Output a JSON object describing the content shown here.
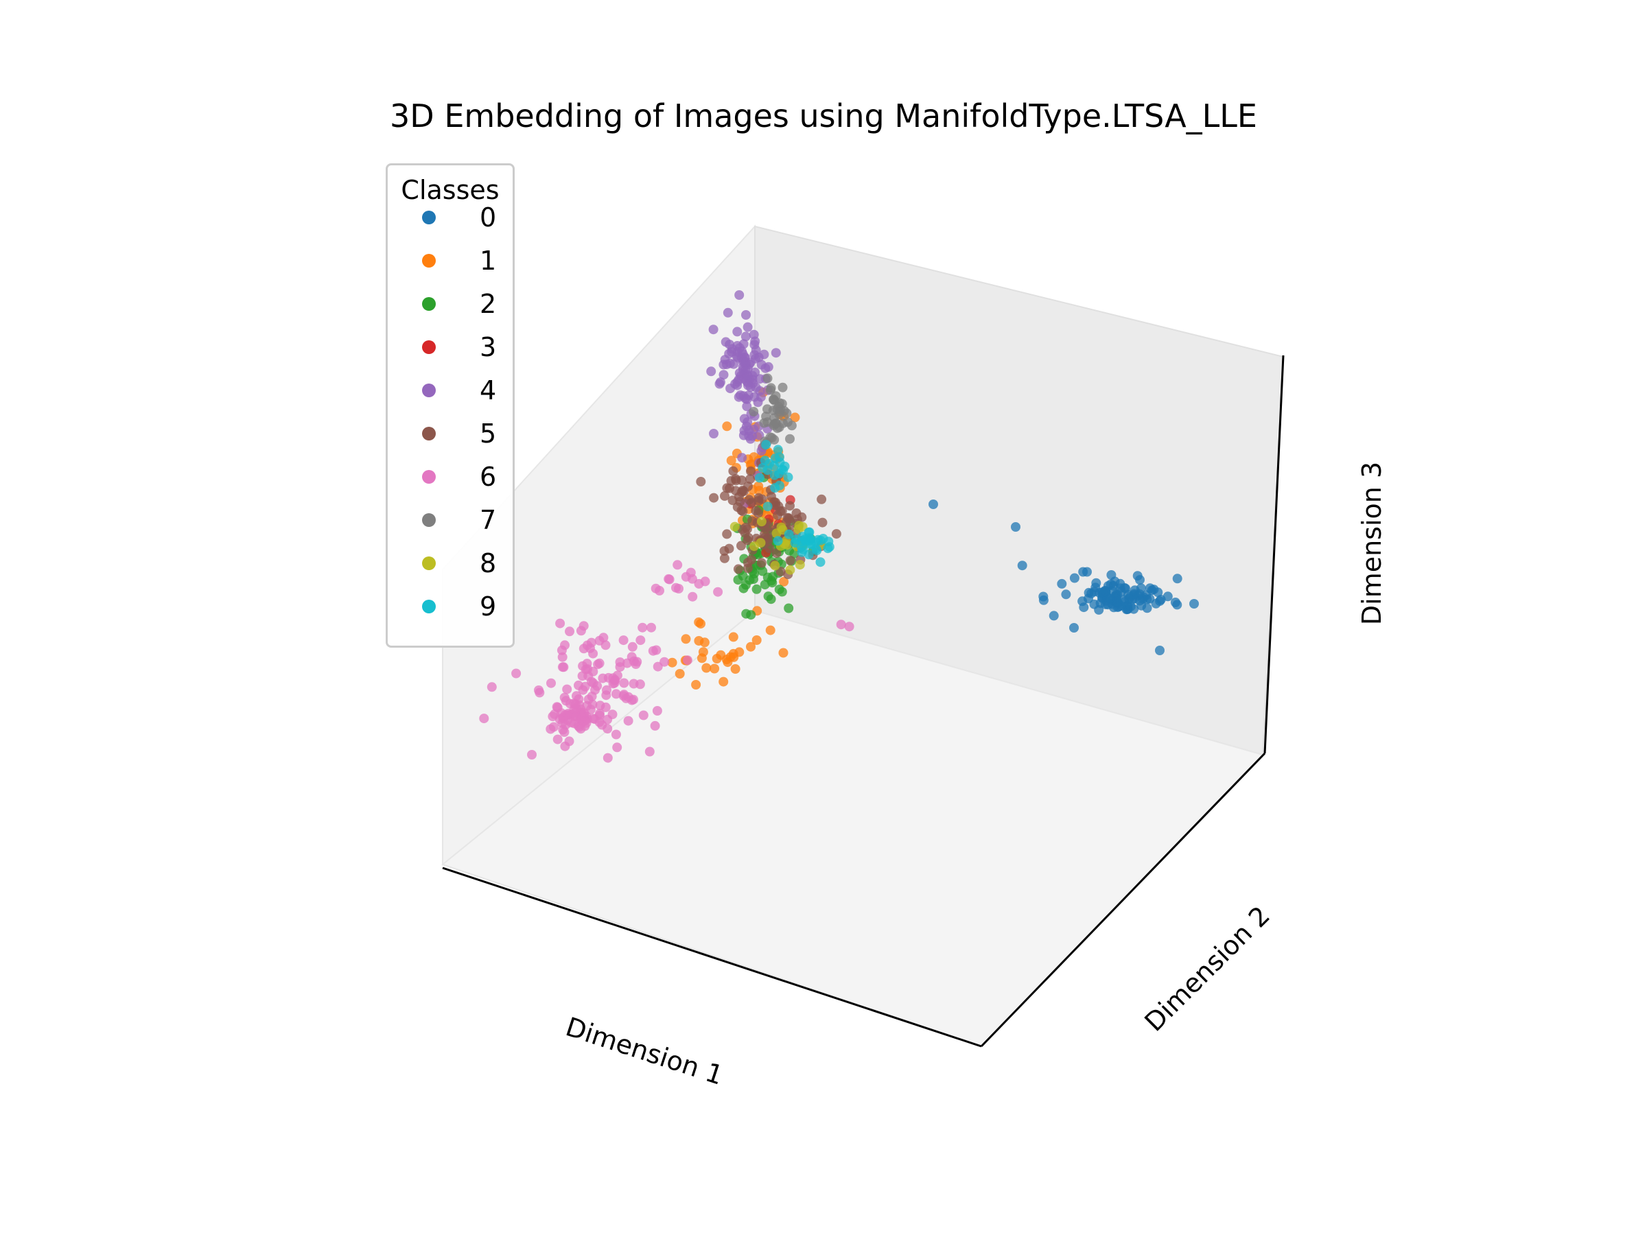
{
  "chart_data": {
    "type": "scatter",
    "projection": "3d",
    "title": "3D Embedding of Images using ManifoldType.LTSA_LLE",
    "xlabel": "Dimension 1",
    "ylabel": "Dimension 2",
    "zlabel": "Dimension 3",
    "grid": false,
    "legend": {
      "title": "Classes",
      "placement": "upper-left"
    },
    "series": [
      {
        "name": "0",
        "color": "#1f77b4"
      },
      {
        "name": "1",
        "color": "#ff7f0e"
      },
      {
        "name": "2",
        "color": "#2ca02c"
      },
      {
        "name": "3",
        "color": "#d62728"
      },
      {
        "name": "4",
        "color": "#9467bd"
      },
      {
        "name": "5",
        "color": "#8c564b"
      },
      {
        "name": "6",
        "color": "#e377c2"
      },
      {
        "name": "7",
        "color": "#7f7f7f"
      },
      {
        "name": "8",
        "color": "#bcbd22"
      },
      {
        "name": "9",
        "color": "#17becf"
      }
    ]
  }
}
